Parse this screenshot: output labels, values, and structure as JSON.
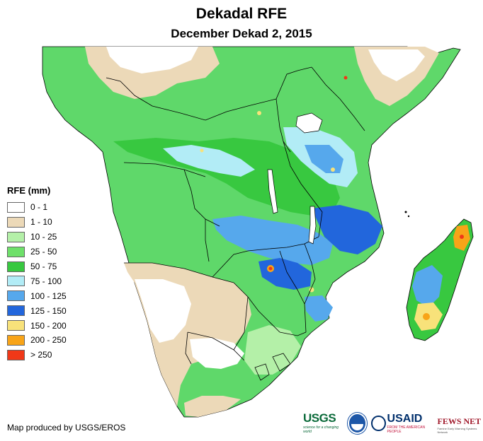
{
  "map": {
    "title": "Dekadal RFE",
    "subtitle": "December Dekad 2, 2015",
    "region": "Southern Africa and Madagascar",
    "variable": "Rainfall Estimate"
  },
  "legend": {
    "title": "RFE (mm)",
    "classes": [
      {
        "label": "0 - 1",
        "color": "#ffffff"
      },
      {
        "label": "1 - 10",
        "color": "#ecd9b8"
      },
      {
        "label": "10 - 25",
        "color": "#b4f0a8"
      },
      {
        "label": "25 - 50",
        "color": "#6ee06a"
      },
      {
        "label": "50 - 75",
        "color": "#38c840"
      },
      {
        "label": "75 - 100",
        "color": "#b2ecf6"
      },
      {
        "label": "100 - 125",
        "color": "#56a8ec"
      },
      {
        "label": "125 - 150",
        "color": "#2266dc"
      },
      {
        "label": "150 - 200",
        "color": "#f8e27a"
      },
      {
        "label": "200 - 250",
        "color": "#f8a418"
      },
      {
        "label": "> 250",
        "color": "#f03818"
      }
    ]
  },
  "credit": "Map produced by USGS/EROS",
  "logos": {
    "usgs": "USGS",
    "usgs_tagline": "science for a changing world",
    "noaa": "noaa-logo",
    "usaid": "USAID",
    "usaid_tagline": "FROM THE AMERICAN PEOPLE",
    "fews": "FEWS NET",
    "fews_tagline": "Famine Early Warning Systems Network"
  },
  "colors": {
    "border": "#000000",
    "ocean": "#ffffff"
  }
}
